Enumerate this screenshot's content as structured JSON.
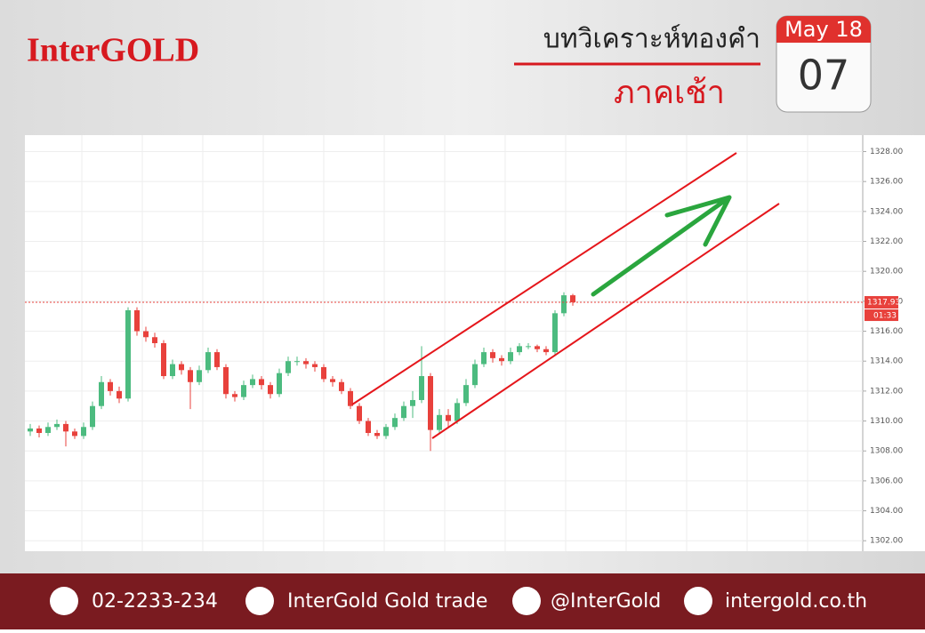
{
  "header": {
    "logo": "InterGOLD",
    "title": "บทวิเคราะห์ทองคำ",
    "subtitle": "ภาคเช้า"
  },
  "calendar": {
    "month": "May 18",
    "day": "07"
  },
  "chart_data": {
    "type": "candlestick",
    "open": [
      1309.3,
      1309.5,
      1309.2,
      1309.6,
      1309.8,
      1309.3,
      1309.0,
      1309.6,
      1311.0,
      1312.6,
      1312.0,
      1311.5,
      1317.4,
      1316.0,
      1315.6,
      1315.2,
      1313.0,
      1313.8,
      1313.4,
      1312.6,
      1313.4,
      1314.6,
      1313.6,
      1311.8,
      1311.6,
      1312.4,
      1312.8,
      1312.4,
      1311.8,
      1313.2,
      1314.0,
      1314.0,
      1313.8,
      1313.6,
      1312.8,
      1312.6,
      1312.0,
      1311.0,
      1310.0,
      1309.2,
      1309.0,
      1309.6,
      1310.2,
      1311.0,
      1311.4,
      1313.0,
      1309.4,
      1310.4,
      1310.0,
      1311.2,
      1312.4,
      1313.8,
      1314.6,
      1314.2,
      1314.0,
      1314.6,
      1315.0,
      1315.0,
      1314.8,
      1314.6,
      1317.2,
      1318.4
    ],
    "high": [
      1309.8,
      1309.7,
      1309.9,
      1310.1,
      1310.0,
      1309.5,
      1309.9,
      1311.3,
      1313.0,
      1312.8,
      1312.3,
      1317.6,
      1317.6,
      1316.3,
      1315.9,
      1315.4,
      1314.1,
      1314.0,
      1313.6,
      1313.7,
      1314.9,
      1314.8,
      1313.8,
      1312.0,
      1312.7,
      1313.1,
      1313.0,
      1312.6,
      1313.5,
      1314.3,
      1314.3,
      1314.2,
      1314.0,
      1313.8,
      1313.0,
      1312.8,
      1312.2,
      1311.2,
      1310.2,
      1309.4,
      1309.8,
      1310.5,
      1311.3,
      1312.0,
      1315.0,
      1313.2,
      1310.8,
      1310.8,
      1311.5,
      1312.8,
      1314.1,
      1314.9,
      1314.8,
      1314.4,
      1314.9,
      1315.2,
      1315.2,
      1315.1,
      1315.0,
      1317.4,
      1318.6,
      1318.5
    ],
    "low": [
      1309.0,
      1308.9,
      1309.0,
      1309.4,
      1308.3,
      1308.8,
      1308.8,
      1309.4,
      1310.8,
      1311.7,
      1311.2,
      1311.3,
      1315.7,
      1315.3,
      1314.9,
      1312.8,
      1312.8,
      1313.1,
      1310.8,
      1312.4,
      1313.2,
      1313.4,
      1311.5,
      1311.3,
      1311.4,
      1312.2,
      1312.1,
      1311.5,
      1311.6,
      1313.0,
      1313.7,
      1313.5,
      1313.3,
      1312.6,
      1312.3,
      1311.8,
      1310.8,
      1309.8,
      1309.0,
      1308.8,
      1308.8,
      1309.4,
      1310.0,
      1310.2,
      1311.2,
      1308.0,
      1309.2,
      1309.6,
      1309.8,
      1311.0,
      1312.2,
      1313.6,
      1313.9,
      1313.7,
      1313.8,
      1314.4,
      1314.8,
      1314.6,
      1314.4,
      1314.4,
      1317.0,
      1317.7
    ],
    "close": [
      1309.5,
      1309.2,
      1309.6,
      1309.8,
      1309.3,
      1309.0,
      1309.6,
      1311.0,
      1312.6,
      1312.0,
      1311.5,
      1317.4,
      1316.0,
      1315.6,
      1315.2,
      1313.0,
      1313.8,
      1313.4,
      1312.6,
      1313.4,
      1314.6,
      1313.6,
      1311.8,
      1311.6,
      1312.4,
      1312.8,
      1312.4,
      1311.8,
      1313.2,
      1314.0,
      1314.0,
      1313.8,
      1313.6,
      1312.8,
      1312.6,
      1312.0,
      1311.0,
      1310.0,
      1309.2,
      1309.0,
      1309.6,
      1310.2,
      1311.0,
      1311.4,
      1313.0,
      1309.4,
      1310.4,
      1310.0,
      1311.2,
      1312.4,
      1313.8,
      1314.6,
      1314.2,
      1314.0,
      1314.6,
      1315.0,
      1315.0,
      1314.8,
      1314.6,
      1317.2,
      1318.4,
      1317.93
    ],
    "up_color": "#4cbb7f",
    "down_color": "#e8413c",
    "ylim": [
      1301.3,
      1329.1
    ],
    "yticks": [
      {
        "value": 1302,
        "label": "1302.00"
      },
      {
        "value": 1304,
        "label": "1304.00"
      },
      {
        "value": 1306,
        "label": "1306.00"
      },
      {
        "value": 1308,
        "label": "1308.00"
      },
      {
        "value": 1310,
        "label": "1310.00"
      },
      {
        "value": 1312,
        "label": "1312.00"
      },
      {
        "value": 1314,
        "label": "1314.00"
      },
      {
        "value": 1316,
        "label": "1316.00"
      },
      {
        "value": 1318,
        "label": "1318.00"
      },
      {
        "value": 1320,
        "label": "1320.00"
      },
      {
        "value": 1322,
        "label": "1322.00"
      },
      {
        "value": 1324,
        "label": "1324.00"
      },
      {
        "value": 1326,
        "label": "1326.00"
      },
      {
        "value": 1328,
        "label": "1328.00"
      }
    ],
    "last_price": {
      "value": 1317.93,
      "label": "1317.93"
    },
    "countdown": "01:33",
    "grid": true
  },
  "footer": {
    "phone": "02-2233-234",
    "facebook": "InterGold Gold trade",
    "line": "@InterGold",
    "website": "intergold.co.th"
  }
}
